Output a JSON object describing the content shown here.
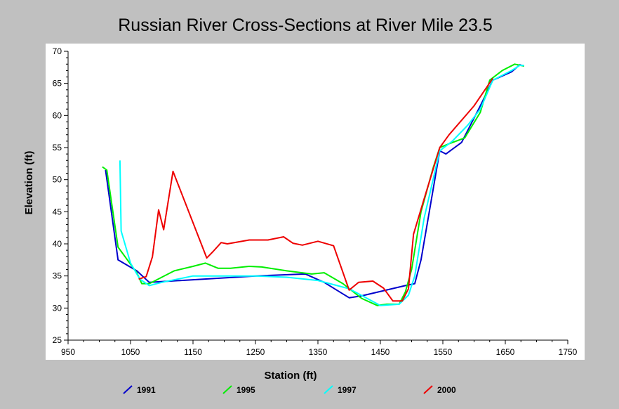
{
  "chart_data": {
    "type": "line",
    "title": "Russian River Cross-Sections at River Mile 23.5",
    "xlabel": "Station (ft)",
    "ylabel": "Elevation (ft)",
    "xlim": [
      950,
      1750
    ],
    "ylim": [
      25,
      70
    ],
    "xticks": [
      950,
      1050,
      1150,
      1250,
      1350,
      1450,
      1550,
      1650,
      1750
    ],
    "yticks": [
      25,
      30,
      35,
      40,
      45,
      50,
      55,
      60,
      65,
      70
    ],
    "grid": false,
    "legend_position": "bottom",
    "series": [
      {
        "name": "1991",
        "color": "#0000cc",
        "points": [
          [
            1010,
            51.5
          ],
          [
            1030,
            37.5
          ],
          [
            1060,
            35.8
          ],
          [
            1080,
            34.0
          ],
          [
            1150,
            34.4
          ],
          [
            1250,
            35.0
          ],
          [
            1330,
            35.3
          ],
          [
            1360,
            34.0
          ],
          [
            1400,
            31.6
          ],
          [
            1420,
            31.9
          ],
          [
            1490,
            33.5
          ],
          [
            1505,
            33.8
          ],
          [
            1515,
            37.5
          ],
          [
            1545,
            54.5
          ],
          [
            1555,
            54.0
          ],
          [
            1580,
            55.8
          ],
          [
            1610,
            61.5
          ],
          [
            1630,
            65.5
          ],
          [
            1660,
            66.8
          ],
          [
            1673,
            67.9
          ],
          [
            1680,
            67.7
          ]
        ]
      },
      {
        "name": "1995",
        "color": "#00ee00",
        "points": [
          [
            1005,
            52.0
          ],
          [
            1012,
            51.5
          ],
          [
            1030,
            39.5
          ],
          [
            1060,
            35.5
          ],
          [
            1068,
            33.8
          ],
          [
            1080,
            33.8
          ],
          [
            1090,
            34.3
          ],
          [
            1100,
            34.8
          ],
          [
            1120,
            35.8
          ],
          [
            1150,
            36.5
          ],
          [
            1170,
            37.0
          ],
          [
            1190,
            36.2
          ],
          [
            1210,
            36.2
          ],
          [
            1240,
            36.5
          ],
          [
            1260,
            36.4
          ],
          [
            1300,
            35.8
          ],
          [
            1340,
            35.3
          ],
          [
            1360,
            35.5
          ],
          [
            1390,
            33.8
          ],
          [
            1420,
            31.5
          ],
          [
            1445,
            30.4
          ],
          [
            1460,
            30.6
          ],
          [
            1480,
            30.6
          ],
          [
            1490,
            32.5
          ],
          [
            1500,
            36.0
          ],
          [
            1515,
            45.0
          ],
          [
            1535,
            52.0
          ],
          [
            1545,
            55.0
          ],
          [
            1560,
            55.6
          ],
          [
            1585,
            56.5
          ],
          [
            1610,
            60.5
          ],
          [
            1625,
            65.5
          ],
          [
            1645,
            67.0
          ],
          [
            1665,
            68.0
          ],
          [
            1680,
            67.7
          ]
        ]
      },
      {
        "name": "1997",
        "color": "#00ffff",
        "points": [
          [
            1033,
            53.0
          ],
          [
            1035,
            42.0
          ],
          [
            1050,
            37.0
          ],
          [
            1065,
            34.5
          ],
          [
            1080,
            33.5
          ],
          [
            1100,
            34.0
          ],
          [
            1150,
            35.0
          ],
          [
            1250,
            35.0
          ],
          [
            1300,
            34.8
          ],
          [
            1350,
            34.3
          ],
          [
            1400,
            33.0
          ],
          [
            1450,
            30.4
          ],
          [
            1480,
            30.6
          ],
          [
            1495,
            32.0
          ],
          [
            1505,
            35.0
          ],
          [
            1520,
            44.0
          ],
          [
            1545,
            54.5
          ],
          [
            1565,
            56.0
          ],
          [
            1590,
            58.5
          ],
          [
            1610,
            61.0
          ],
          [
            1630,
            65.5
          ],
          [
            1660,
            67.0
          ],
          [
            1673,
            67.8
          ],
          [
            1680,
            67.8
          ]
        ]
      },
      {
        "name": "2000",
        "color": "#ee0000",
        "points": [
          [
            1063,
            34.5
          ],
          [
            1075,
            34.9
          ],
          [
            1085,
            38.0
          ],
          [
            1095,
            45.3
          ],
          [
            1103,
            42.2
          ],
          [
            1118,
            51.3
          ],
          [
            1172,
            37.8
          ],
          [
            1182,
            38.8
          ],
          [
            1195,
            40.2
          ],
          [
            1205,
            40.0
          ],
          [
            1240,
            40.6
          ],
          [
            1270,
            40.6
          ],
          [
            1295,
            41.1
          ],
          [
            1310,
            40.1
          ],
          [
            1325,
            39.8
          ],
          [
            1350,
            40.4
          ],
          [
            1375,
            39.7
          ],
          [
            1400,
            32.8
          ],
          [
            1415,
            34.0
          ],
          [
            1438,
            34.2
          ],
          [
            1455,
            33.1
          ],
          [
            1470,
            31.1
          ],
          [
            1485,
            31.1
          ],
          [
            1495,
            33.0
          ],
          [
            1503,
            41.5
          ],
          [
            1520,
            47.0
          ],
          [
            1545,
            55.0
          ],
          [
            1560,
            57.0
          ],
          [
            1600,
            61.5
          ],
          [
            1630,
            65.8
          ]
        ]
      }
    ]
  }
}
